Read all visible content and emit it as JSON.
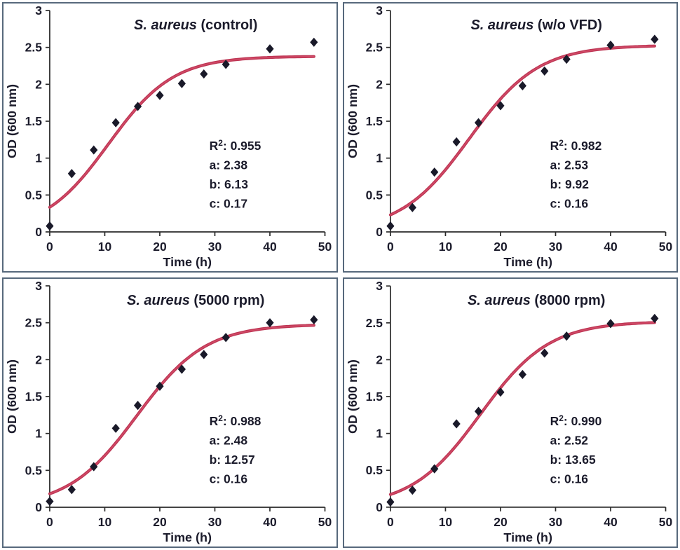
{
  "figure": {
    "description": "Bacterial growth curves (OD600 vs time) with sigmoidal fits for S. aureus under four vortex fluidic device conditions",
    "layout": "2x2-grid"
  },
  "style": {
    "panel_border": "#57697c",
    "curve_color": "#bd3553",
    "curve_inner": "#d14a67",
    "marker_color": "#191929",
    "axis_color": "#2a2a2a",
    "text_color": "#1b1b2b",
    "background": "#ffffff"
  },
  "axes": {
    "xlabel": "Time (h)",
    "ylabel": "OD (600 nm)",
    "xlim": [
      0,
      50
    ],
    "ylim": [
      0,
      3
    ],
    "xticks": [
      0,
      10,
      20,
      30,
      40,
      50
    ],
    "yticks": [
      0,
      0.5,
      1,
      1.5,
      2,
      2.5,
      3
    ],
    "ytick_labels": [
      "0",
      "0.5",
      "1",
      "1.5",
      "2",
      "2.5",
      "3"
    ],
    "grid": "off",
    "legend": "none"
  },
  "chart_data": [
    {
      "type": "scatter",
      "title_species": "S. aureus",
      "title_condition": "(control)",
      "x": [
        0,
        4,
        8,
        12,
        16,
        20,
        24,
        28,
        32,
        40,
        48
      ],
      "y": [
        0.08,
        0.79,
        1.11,
        1.48,
        1.7,
        1.85,
        2.01,
        2.14,
        2.27,
        2.48,
        2.57
      ],
      "fit": {
        "model": "y = a / (1 + b*exp(-c*x))",
        "a": 2.38,
        "b": 6.13,
        "c": 0.17,
        "r2": 0.955
      },
      "annotation": {
        "r2": "0.955",
        "a": "2.38",
        "b": "6.13",
        "c": "0.17"
      }
    },
    {
      "type": "scatter",
      "title_species": "S. aureus",
      "title_condition": "(w/o VFD)",
      "x": [
        0,
        4,
        8,
        12,
        16,
        20,
        24,
        28,
        32,
        40,
        48
      ],
      "y": [
        0.08,
        0.33,
        0.81,
        1.22,
        1.48,
        1.71,
        1.98,
        2.18,
        2.34,
        2.53,
        2.61
      ],
      "fit": {
        "model": "y = a / (1 + b*exp(-c*x))",
        "a": 2.53,
        "b": 9.92,
        "c": 0.16,
        "r2": 0.982
      },
      "annotation": {
        "r2": "0.982",
        "a": "2.53",
        "b": "9.92",
        "c": "0.16"
      }
    },
    {
      "type": "scatter",
      "title_species": "S. aureus",
      "title_condition": "(5000 rpm)",
      "x": [
        0,
        4,
        8,
        12,
        16,
        20,
        24,
        28,
        32,
        40,
        48
      ],
      "y": [
        0.08,
        0.24,
        0.55,
        1.07,
        1.38,
        1.64,
        1.87,
        2.07,
        2.3,
        2.5,
        2.54
      ],
      "fit": {
        "model": "y = a / (1 + b*exp(-c*x))",
        "a": 2.48,
        "b": 12.57,
        "c": 0.16,
        "r2": 0.988
      },
      "annotation": {
        "r2": "0.988",
        "a": "2.48",
        "b": "12.57",
        "c": "0.16"
      }
    },
    {
      "type": "scatter",
      "title_species": "S. aureus",
      "title_condition": "(8000 rpm)",
      "x": [
        0,
        4,
        8,
        12,
        16,
        20,
        24,
        28,
        32,
        40,
        48
      ],
      "y": [
        0.07,
        0.23,
        0.52,
        1.13,
        1.3,
        1.56,
        1.8,
        2.09,
        2.32,
        2.49,
        2.56
      ],
      "fit": {
        "model": "y = a / (1 + b*exp(-c*x))",
        "a": 2.52,
        "b": 13.65,
        "c": 0.16,
        "r2": 0.99
      },
      "annotation": {
        "r2": "0.990",
        "a": "2.52",
        "b": "13.65",
        "c": "0.16"
      }
    }
  ]
}
